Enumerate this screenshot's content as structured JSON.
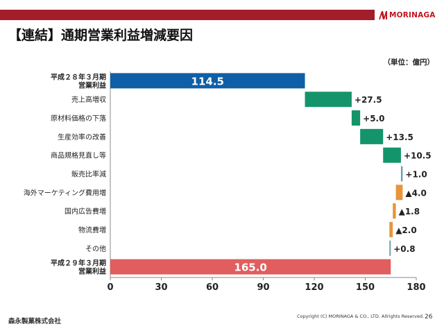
{
  "header": {
    "title": "【連結】通期営業利益増減要因",
    "logo_text": "MORINAGA",
    "bar_color": "#a31d2a",
    "logo_color": "#c0161f"
  },
  "unit_label": "（単位：億円）",
  "footer": {
    "company": "森永製菓株式会社",
    "copyright": "Copyright (C) MORINAGA & CO., LTD. Allrights Reserved.",
    "page": "26"
  },
  "chart_data": {
    "type": "bar",
    "subtype": "waterfall-horizontal",
    "orientation": "horizontal",
    "xlim": [
      0,
      180
    ],
    "xticks": [
      "0",
      "30",
      "60",
      "90",
      "120",
      "150",
      "180"
    ],
    "grid": false,
    "legend": "none",
    "colors": {
      "start": "#0e5fa6",
      "end": "#e05e5e",
      "increase": "#14946a",
      "decrease": "#e8953a",
      "small": "#6f9fa8"
    },
    "items": [
      {
        "label": "平成２８年３月期\n営業利益",
        "value": 114.5,
        "kind": "start",
        "label_text": "114.5"
      },
      {
        "label": "売上高増収",
        "value": 27.5,
        "kind": "increase",
        "label_text": "+27.5"
      },
      {
        "label": "原材料価格の下落",
        "value": 5.0,
        "kind": "increase",
        "label_text": "+5.0"
      },
      {
        "label": "生産効率の改善",
        "value": 13.5,
        "kind": "increase",
        "label_text": "+13.5"
      },
      {
        "label": "商品規格見直し等",
        "value": 10.5,
        "kind": "increase",
        "label_text": "+10.5"
      },
      {
        "label": "販売比率減",
        "value": 1.0,
        "kind": "small",
        "label_text": "+1.0"
      },
      {
        "label": "海外マーケティング費用増",
        "value": -4.0,
        "kind": "decrease",
        "label_text": "▲4.0"
      },
      {
        "label": "国内広告費増",
        "value": -1.8,
        "kind": "decrease",
        "label_text": "▲1.8"
      },
      {
        "label": "物流費増",
        "value": -2.0,
        "kind": "decrease",
        "label_text": "▲2.0"
      },
      {
        "label": "その他",
        "value": 0.8,
        "kind": "small",
        "label_text": "+0.8"
      },
      {
        "label": "平成２９年３月期\n営業利益",
        "value": 165.0,
        "kind": "end",
        "label_text": "165.0"
      }
    ]
  }
}
